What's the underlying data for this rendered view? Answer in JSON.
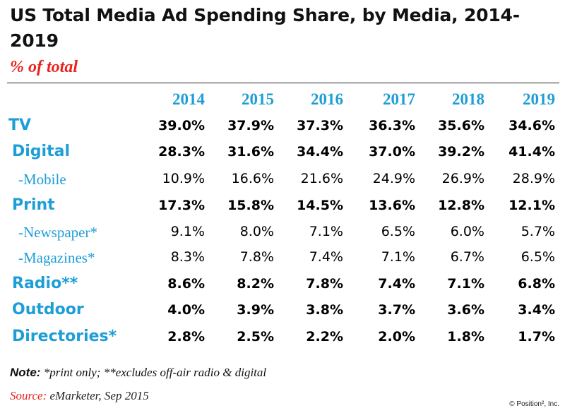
{
  "header": {
    "title": "US Total Media Ad Spending Share, by Media, 2014-2019",
    "subtitle": "% of total"
  },
  "chart_data": {
    "type": "table",
    "columns": [
      "2014",
      "2015",
      "2016",
      "2017",
      "2018",
      "2019"
    ],
    "rows": [
      {
        "label": "TV",
        "level": "main",
        "values": [
          "39.0%",
          "37.9%",
          "37.3%",
          "36.3%",
          "35.6%",
          "34.6%"
        ]
      },
      {
        "label": "Digital",
        "level": "main",
        "values": [
          "28.3%",
          "31.6%",
          "34.4%",
          "37.0%",
          "39.2%",
          "41.4%"
        ]
      },
      {
        "label": "-Mobile",
        "level": "sub",
        "values": [
          "10.9%",
          "16.6%",
          "21.6%",
          "24.9%",
          "26.9%",
          "28.9%"
        ]
      },
      {
        "label": "Print",
        "level": "main",
        "values": [
          "17.3%",
          "15.8%",
          "14.5%",
          "13.6%",
          "12.8%",
          "12.1%"
        ]
      },
      {
        "label": "-Newspaper*",
        "level": "sub",
        "values": [
          "9.1%",
          "8.0%",
          "7.1%",
          "6.5%",
          "6.0%",
          "5.7%"
        ]
      },
      {
        "label": "-Magazines*",
        "level": "sub",
        "values": [
          "8.3%",
          "7.8%",
          "7.4%",
          "7.1%",
          "6.7%",
          "6.5%"
        ]
      },
      {
        "label": "Radio**",
        "level": "main",
        "values": [
          "8.6%",
          "8.2%",
          "7.8%",
          "7.4%",
          "7.1%",
          "6.8%"
        ]
      },
      {
        "label": "Outdoor",
        "level": "main",
        "values": [
          "4.0%",
          "3.9%",
          "3.8%",
          "3.7%",
          "3.6%",
          "3.4%"
        ]
      },
      {
        "label": "Directories*",
        "level": "main",
        "values": [
          "2.8%",
          "2.5%",
          "2.2%",
          "2.0%",
          "1.8%",
          "1.7%"
        ]
      }
    ]
  },
  "footer": {
    "note_label": "Note:",
    "note_text": " *print only; **excludes off-air radio & digital",
    "source_label": "Source:",
    "source_text": " eMarketer, Sep 2015",
    "copyright": "© Position², Inc."
  }
}
